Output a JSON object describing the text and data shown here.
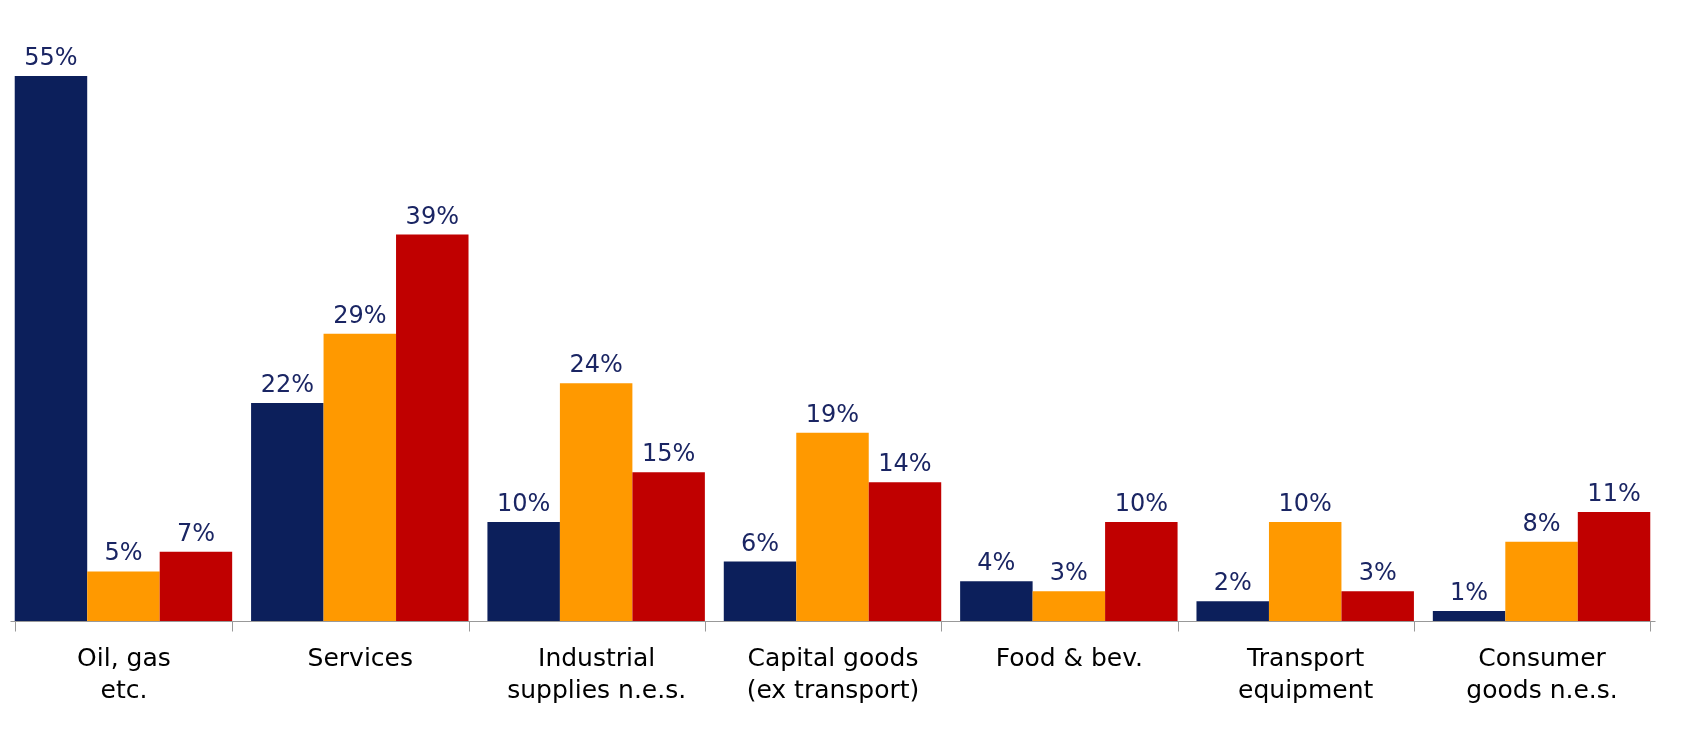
{
  "chart_data": {
    "type": "bar",
    "categories": [
      "Oil, gas\netc.",
      "Services",
      "Industrial\nsupplies n.e.s.",
      "Capital goods\n(ex transport)",
      "Food & bev.",
      "Transport\nequipment",
      "Consumer\ngoods n.e.s."
    ],
    "series": [
      {
        "color": "#0c1f5b",
        "values": [
          55,
          22,
          10,
          6,
          4,
          2,
          1
        ],
        "value_labels": [
          "55%",
          "22%",
          "10%",
          "6%",
          "4%",
          "2%",
          "1%"
        ]
      },
      {
        "color": "#ff9900",
        "values": [
          5,
          29,
          24,
          19,
          3,
          10,
          8
        ],
        "value_labels": [
          "5%",
          "29%",
          "24%",
          "19%",
          "3%",
          "10%",
          "8%"
        ]
      },
      {
        "color": "#c00000",
        "values": [
          7,
          39,
          15,
          14,
          10,
          3,
          11
        ],
        "value_labels": [
          "7%",
          "39%",
          "15%",
          "14%",
          "10%",
          "3%",
          "11%"
        ]
      }
    ],
    "grid": false,
    "legend": false
  }
}
